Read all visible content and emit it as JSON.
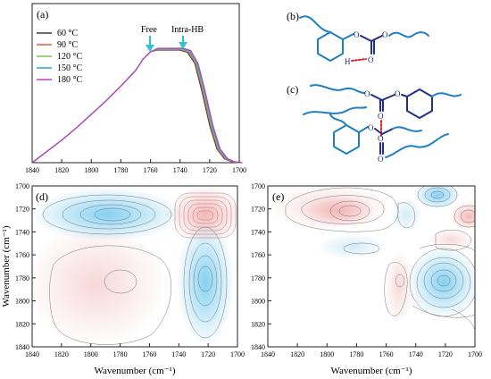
{
  "figure": {
    "panel_labels": {
      "a": "(a)",
      "b": "(b)",
      "c": "(c)",
      "d": "(d)",
      "e": "(e)"
    }
  },
  "chart_data": [
    {
      "type": "line",
      "panel": "(a)",
      "xlabel": "",
      "ylabel": "",
      "xlim": [
        1840,
        1700
      ],
      "ticks": [
        "1840",
        "1820",
        "1800",
        "1780",
        "1760",
        "1740",
        "1720",
        "1700"
      ],
      "annotations": [
        {
          "text": "Free",
          "x": 1760
        },
        {
          "text": "Intra-HB",
          "x": 1740
        }
      ],
      "series": [
        {
          "name": "60 °C",
          "color": "#3a3a3a"
        },
        {
          "name": "90 °C",
          "color": "#e05a5a"
        },
        {
          "name": "120 °C",
          "color": "#7ac943"
        },
        {
          "name": "150 °C",
          "color": "#2aa1d8"
        },
        {
          "name": "180 °C",
          "color": "#c23ac8"
        }
      ],
      "x": [
        1840,
        1830,
        1820,
        1810,
        1800,
        1790,
        1780,
        1770,
        1765,
        1760,
        1755,
        1750,
        1745,
        1740,
        1735,
        1730,
        1725,
        1720,
        1715,
        1710,
        1705,
        1700
      ],
      "base_y": [
        0.0,
        0.1,
        0.2,
        0.31,
        0.43,
        0.55,
        0.68,
        0.82,
        0.92,
        0.985,
        1.0,
        1.0,
        1.0,
        1.0,
        0.98,
        0.88,
        0.62,
        0.33,
        0.12,
        0.035,
        0.008,
        0.0
      ],
      "shift_per_series": 0.9
    },
    {
      "type": "heatmap",
      "panel": "(d)",
      "xlabel": "Wavenumber (cm⁻¹)",
      "ylabel": "Wavenumber (cm⁻¹)",
      "x_ticks": [
        "1840",
        "1820",
        "1800",
        "1780",
        "1760",
        "1740",
        "1720",
        "1700"
      ],
      "y_ticks": [
        "1700",
        "1720",
        "1740",
        "1760",
        "1780",
        "1800",
        "1820",
        "1840"
      ],
      "peaks": [
        {
          "x": 1725,
          "y": 1723,
          "sign": "positive"
        },
        {
          "x": 1778,
          "y": 1723,
          "sign": "negative"
        },
        {
          "x": 1725,
          "y": 1778,
          "sign": "negative"
        },
        {
          "x": 1778,
          "y": 1778,
          "sign": "positive"
        }
      ]
    },
    {
      "type": "heatmap",
      "panel": "(e)",
      "xlabel": "Wavenumber (cm⁻¹)",
      "ylabel": "",
      "x_ticks": [
        "1840",
        "1820",
        "1800",
        "1780",
        "1760",
        "1740",
        "1720",
        "1700"
      ],
      "y_ticks": [
        "1700",
        "1720",
        "1740",
        "1760",
        "1780",
        "1800",
        "1820",
        "1840"
      ],
      "peaks": [
        {
          "x": 1780,
          "y": 1720,
          "sign": "positive"
        },
        {
          "x": 1728,
          "y": 1705,
          "sign": "negative"
        },
        {
          "x": 1745,
          "y": 1725,
          "sign": "negative"
        },
        {
          "x": 1708,
          "y": 1725,
          "sign": "positive"
        },
        {
          "x": 1720,
          "y": 1748,
          "sign": "positive"
        },
        {
          "x": 1770,
          "y": 1752,
          "sign": "negative"
        },
        {
          "x": 1752,
          "y": 1780,
          "sign": "positive"
        },
        {
          "x": 1720,
          "y": 1780,
          "sign": "negative"
        }
      ]
    }
  ]
}
